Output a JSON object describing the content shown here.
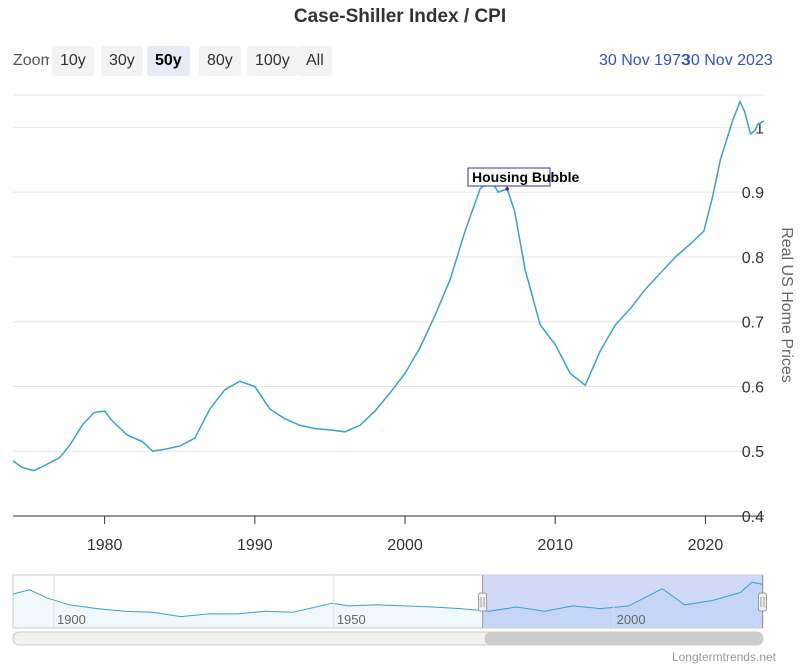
{
  "title": "Case-Shiller Index / CPI",
  "zoom": {
    "label": "Zoom",
    "buttons": [
      "10y",
      "30y",
      "50y",
      "80y",
      "100y",
      "All"
    ],
    "active": "50y"
  },
  "range": {
    "from": "30 Nov 1973",
    "to": "30 Nov 2023"
  },
  "credit": "Longtermtrends.net",
  "colors": {
    "line": "#3aa0d0",
    "navigator_mask": "#ccd5f8",
    "annotation": "#333399",
    "range_text": "#3355bb"
  },
  "chart_data": {
    "type": "line",
    "title": "Case-Shiller Index / CPI",
    "ylabel": "Real US Home Prices",
    "xlim": [
      1973.9,
      2023.9
    ],
    "ylim": [
      0.4,
      1.05
    ],
    "x_ticks": [
      1980,
      1990,
      2000,
      2010,
      2020
    ],
    "y_ticks": [
      0.4,
      0.5,
      0.6,
      0.7,
      0.8,
      0.9,
      1
    ],
    "grid": true,
    "annotation": {
      "label": "Housing Bubble",
      "x": 2006.8,
      "y": 0.905
    },
    "series": [
      {
        "x": [
          1973.9,
          1974.5,
          1975.3,
          1976,
          1977,
          1977.7,
          1978.5,
          1979.3,
          1980,
          1980.5,
          1981.5,
          1982.5,
          1983.2,
          1984,
          1985,
          1986,
          1987,
          1988,
          1989,
          1990,
          1991,
          1992,
          1993,
          1994,
          1995,
          1996,
          1997,
          1998,
          1999,
          2000,
          2001,
          2002,
          2003,
          2004,
          2005,
          2005.7,
          2006.2,
          2006.8,
          2007.3,
          2008,
          2009,
          2010,
          2011,
          2012,
          2013,
          2014,
          2015,
          2016,
          2017,
          2018,
          2019,
          2019.9,
          2020.5,
          2021,
          2021.8,
          2022.3,
          2022.6,
          2023,
          2023.3,
          2023.5,
          2023.9
        ],
        "y": [
          0.485,
          0.475,
          0.47,
          0.478,
          0.49,
          0.51,
          0.54,
          0.56,
          0.562,
          0.547,
          0.525,
          0.515,
          0.5,
          0.503,
          0.508,
          0.52,
          0.565,
          0.595,
          0.608,
          0.6,
          0.565,
          0.55,
          0.54,
          0.535,
          0.533,
          0.53,
          0.54,
          0.562,
          0.59,
          0.62,
          0.66,
          0.71,
          0.765,
          0.84,
          0.905,
          0.92,
          0.9,
          0.905,
          0.87,
          0.78,
          0.695,
          0.665,
          0.62,
          0.602,
          0.655,
          0.695,
          0.72,
          0.75,
          0.775,
          0.8,
          0.82,
          0.84,
          0.895,
          0.95,
          1.01,
          1.04,
          1.025,
          0.99,
          0.995,
          1.005,
          1.01
        ]
      }
    ],
    "navigator": {
      "x_ticks": [
        1900,
        1950,
        2000
      ],
      "xlim": [
        1890,
        2024
      ],
      "selected": [
        1973.9,
        2023.9
      ],
      "x": [
        1890,
        1893,
        1896,
        1900,
        1905,
        1910,
        1915,
        1920,
        1925,
        1930,
        1935,
        1940,
        1945,
        1947,
        1950,
        1955,
        1960,
        1965,
        1970,
        1975,
        1980,
        1985,
        1990,
        1995,
        2000,
        2006,
        2010,
        2015,
        2020,
        2022,
        2024
      ],
      "y": [
        0.82,
        0.9,
        0.75,
        0.62,
        0.55,
        0.5,
        0.48,
        0.4,
        0.45,
        0.45,
        0.5,
        0.48,
        0.6,
        0.65,
        0.6,
        0.62,
        0.6,
        0.58,
        0.55,
        0.5,
        0.58,
        0.5,
        0.6,
        0.55,
        0.6,
        0.92,
        0.62,
        0.7,
        0.85,
        1.04,
        1.0
      ]
    }
  }
}
